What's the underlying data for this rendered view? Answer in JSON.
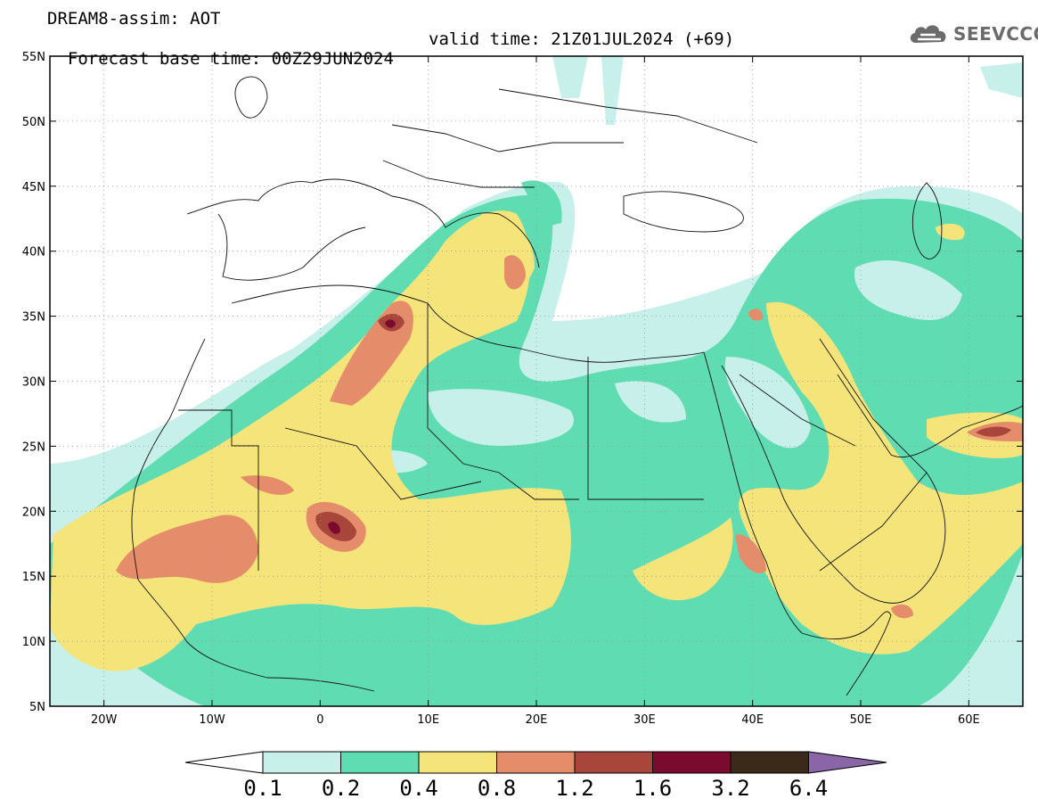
{
  "title": {
    "line1": "DREAM8-assim: AOT",
    "base_time": "Forecast base time: 00Z29JUN2024",
    "valid_time": "valid time: 21Z01JUL2024 (+69)"
  },
  "logo": {
    "text": "SEEVCCC",
    "icon": "cloud-logo-icon"
  },
  "colors": {
    "c01": "#c8f0ea",
    "c02": "#5fdcb1",
    "c04": "#f5e47a",
    "c08": "#e58c6a",
    "c12": "#a8463c",
    "c16": "#7a0a2e",
    "c32": "#3b2a1a",
    "c64": "#8a66a8"
  },
  "axes": {
    "lat_labels": [
      "55N",
      "50N",
      "45N",
      "40N",
      "35N",
      "30N",
      "25N",
      "20N",
      "15N",
      "10N",
      "5N"
    ],
    "lon_labels": [
      "20W",
      "10W",
      "0",
      "10E",
      "20E",
      "30E",
      "40E",
      "50E",
      "60E"
    ],
    "lat_range": [
      5,
      55
    ],
    "lon_range": [
      -25,
      65
    ]
  },
  "colorbar": {
    "levels": [
      "0.1",
      "0.2",
      "0.4",
      "0.8",
      "1.2",
      "1.6",
      "3.2",
      "6.4"
    ],
    "colors": [
      "#c8f0ea",
      "#5fdcb1",
      "#f5e47a",
      "#e58c6a",
      "#a8463c",
      "#7a0a2e",
      "#3b2a1a"
    ],
    "under_color": "#ffffff",
    "over_color": "#8a66a8"
  }
}
